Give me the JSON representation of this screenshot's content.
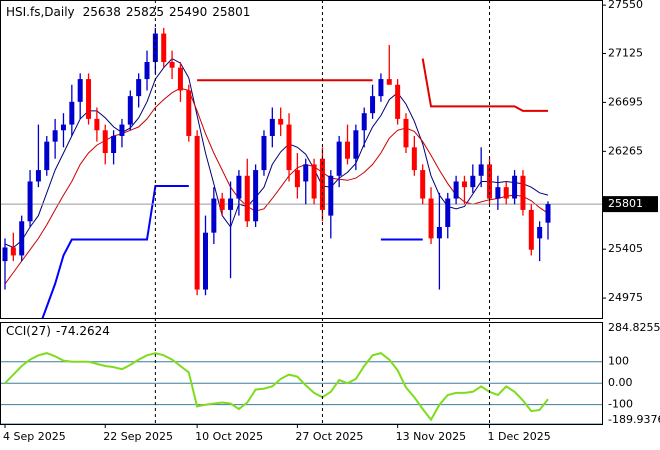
{
  "chart_data": [
    {
      "type": "candlestick",
      "title": "HSI.fs,Daily",
      "categories": [
        "4 Sep 2025",
        null,
        null,
        null,
        null,
        null,
        null,
        null,
        null,
        null,
        null,
        null,
        "22 Sep 2025",
        null,
        null,
        null,
        null,
        null,
        null,
        null,
        null,
        null,
        null,
        "10 Oct 2025",
        null,
        null,
        null,
        null,
        null,
        null,
        null,
        null,
        null,
        null,
        null,
        "27 Oct 2025",
        null,
        null,
        null,
        null,
        null,
        null,
        null,
        null,
        null,
        null,
        null,
        "13 Nov 2025",
        null,
        null,
        null,
        null,
        null,
        null,
        null,
        null,
        null,
        null,
        "1 Dec 2025",
        null,
        null,
        null,
        null,
        null,
        null,
        null
      ],
      "open": [
        25300,
        25420,
        25350,
        25650,
        26000,
        26100,
        26350,
        26450,
        26500,
        26700,
        26900,
        26550,
        26450,
        26250,
        26400,
        26500,
        26750,
        26900,
        27050,
        27300,
        27050,
        27000,
        26800,
        26400,
        25050,
        25550,
        25850,
        25750,
        25850,
        26050,
        25650,
        26100,
        26400,
        26550,
        26500,
        26100,
        26000,
        26150,
        26200,
        25700,
        26050,
        26350,
        26200,
        26450,
        26600,
        26750,
        26900,
        26850,
        26550,
        26300,
        26100,
        25850,
        25500,
        25600,
        25850,
        26000,
        25950,
        26050,
        26150,
        25850,
        25950,
        25850,
        26050,
        25750,
        25500,
        25638
      ],
      "high": [
        25500,
        25550,
        25700,
        26100,
        26500,
        26400,
        26550,
        26600,
        26850,
        26950,
        26950,
        26650,
        26500,
        26450,
        26550,
        26800,
        26950,
        27150,
        27350,
        27350,
        27150,
        27050,
        26850,
        26450,
        25700,
        25950,
        25900,
        26000,
        26100,
        26200,
        26150,
        26450,
        26650,
        26650,
        26600,
        26250,
        26200,
        26200,
        26300,
        26100,
        26400,
        26500,
        26500,
        26650,
        26850,
        26950,
        27200,
        26900,
        26600,
        26400,
        26150,
        25950,
        25900,
        25900,
        26050,
        26050,
        26150,
        26300,
        26200,
        26050,
        26000,
        26100,
        26100,
        25800,
        25650,
        25825
      ],
      "low": [
        25050,
        25300,
        25300,
        25600,
        25950,
        26050,
        26200,
        26300,
        26400,
        26550,
        26500,
        26350,
        26150,
        26150,
        26300,
        26450,
        26650,
        26800,
        26950,
        27000,
        26900,
        26700,
        26350,
        25000,
        25000,
        25450,
        25700,
        25150,
        25700,
        25600,
        25600,
        26050,
        26300,
        26400,
        26000,
        25850,
        25800,
        25800,
        25650,
        25500,
        25950,
        26150,
        26100,
        26300,
        26550,
        26700,
        26850,
        26500,
        26250,
        26050,
        25800,
        25450,
        25050,
        25500,
        25800,
        25800,
        25900,
        25950,
        25800,
        25750,
        25800,
        25800,
        25700,
        25350,
        25300,
        25490
      ],
      "close": [
        25420,
        25350,
        25650,
        26000,
        26100,
        26350,
        26450,
        26500,
        26700,
        26900,
        26550,
        26450,
        26250,
        26400,
        26500,
        26750,
        26900,
        27050,
        27300,
        27050,
        27000,
        26800,
        26400,
        25050,
        25550,
        25850,
        25750,
        25850,
        26050,
        25650,
        26100,
        26400,
        26550,
        26500,
        26100,
        25950,
        26150,
        25850,
        25750,
        26050,
        26350,
        26200,
        26450,
        26600,
        26750,
        26900,
        26850,
        26550,
        26300,
        26100,
        25850,
        25500,
        25600,
        25850,
        26000,
        25950,
        26050,
        26150,
        25850,
        25950,
        25850,
        26050,
        25750,
        25400,
        25600,
        25801
      ],
      "up_color": "#0000cc",
      "down_color": "#ff0000",
      "overlays": [
        {
          "color": "#00007a",
          "width": 1,
          "values": [
            25450,
            25420,
            25480,
            25600,
            25700,
            25900,
            26100,
            26250,
            26400,
            26550,
            26620,
            26620,
            26560,
            26480,
            26430,
            26470,
            26560,
            26700,
            26900,
            27000,
            27080,
            27040,
            26910,
            26580,
            26250,
            25980,
            25700,
            25600,
            25800,
            25780,
            25860,
            25950,
            26150,
            26260,
            26330,
            26300,
            26240,
            26110,
            25960,
            25950,
            26030,
            26080,
            26160,
            26330,
            26480,
            26580,
            26720,
            26780,
            26680,
            26530,
            26330,
            26050,
            25880,
            25780,
            25760,
            25780,
            25890,
            26000,
            26000,
            25990,
            26000,
            25990,
            25980,
            25950,
            25900,
            25880
          ]
        },
        {
          "color": "#cc0000",
          "width": 1,
          "values": [
            25100,
            25200,
            25300,
            25400,
            25500,
            25620,
            25750,
            25880,
            26000,
            26150,
            26250,
            26320,
            26360,
            26400,
            26420,
            26450,
            26480,
            26550,
            26650,
            26720,
            26780,
            26820,
            26800,
            26620,
            26420,
            26250,
            26100,
            25950,
            25850,
            25780,
            25740,
            25760,
            25850,
            25950,
            26050,
            26120,
            26150,
            26130,
            26080,
            26030,
            26020,
            26010,
            26030,
            26080,
            26150,
            26250,
            26380,
            26450,
            26470,
            26440,
            26350,
            26230,
            26100,
            25980,
            25880,
            25820,
            25800,
            25820,
            25840,
            25850,
            25870,
            25880,
            25870,
            25830,
            25770,
            25720
          ]
        },
        {
          "color": "#e00000",
          "width": 2,
          "values": [
            null,
            null,
            null,
            null,
            null,
            null,
            null,
            null,
            null,
            null,
            null,
            null,
            null,
            null,
            null,
            null,
            null,
            null,
            null,
            null,
            null,
            null,
            null,
            26890,
            26890,
            26890,
            26890,
            26890,
            26890,
            26890,
            26890,
            26890,
            26890,
            26890,
            26890,
            26890,
            26890,
            26890,
            26890,
            26890,
            26890,
            26890,
            26890,
            26890,
            26890,
            null,
            null,
            null,
            null,
            null,
            27080,
            26660,
            26660,
            26660,
            26660,
            26660,
            26660,
            26660,
            26660,
            26660,
            26660,
            26660,
            26620,
            26620,
            26620,
            26620
          ]
        },
        {
          "color": "#0000ff",
          "width": 2,
          "values": [
            null,
            null,
            null,
            null,
            24700,
            24900,
            25100,
            25350,
            25490,
            25490,
            25490,
            25490,
            25490,
            25490,
            25490,
            25490,
            25490,
            25490,
            25960,
            25960,
            25960,
            25960,
            25960,
            null,
            null,
            null,
            null,
            null,
            null,
            null,
            null,
            null,
            null,
            null,
            null,
            null,
            null,
            null,
            null,
            null,
            null,
            null,
            null,
            null,
            null,
            25490,
            25490,
            25490,
            25490,
            25490,
            25490,
            null,
            null,
            null,
            null,
            null,
            null,
            null,
            null,
            null,
            null,
            null,
            null,
            null,
            null,
            null
          ]
        }
      ],
      "ylim": [
        24800,
        27595
      ],
      "yticks": [
        24975,
        25405,
        26265,
        26695,
        27125,
        27550
      ]
    },
    {
      "type": "line",
      "title": "CCI(27)",
      "color": "#7fdc1c",
      "values": [
        0,
        40,
        80,
        110,
        130,
        140,
        125,
        105,
        100,
        100,
        100,
        90,
        80,
        75,
        65,
        85,
        110,
        130,
        140,
        130,
        110,
        80,
        50,
        -108,
        -100,
        -95,
        -90,
        -95,
        -120,
        -90,
        -30,
        -25,
        -15,
        20,
        40,
        30,
        -10,
        -45,
        -65,
        -40,
        15,
        0,
        20,
        80,
        130,
        140,
        110,
        60,
        -20,
        -65,
        -120,
        -170,
        -100,
        -55,
        -45,
        -45,
        -40,
        -15,
        -40,
        -55,
        -15,
        -40,
        -80,
        -130,
        -125,
        -74.2624
      ],
      "ylim": [
        -189.9376,
        284.8255
      ],
      "yticks": [
        -189.9376,
        -100,
        {
          "value": 0,
          "label": "0.00"
        },
        100,
        284.8255
      ]
    }
  ]
}
